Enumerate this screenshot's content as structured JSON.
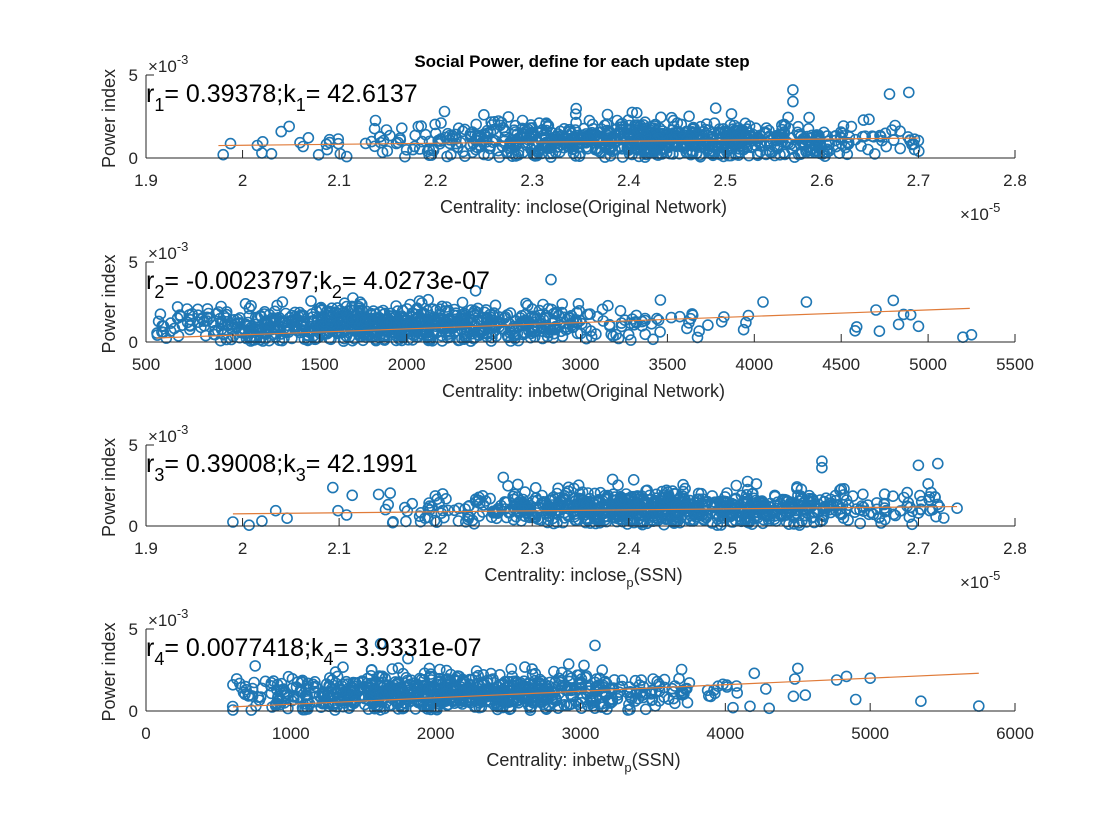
{
  "figure": {
    "title": "Social Power, define for each update step"
  },
  "colors": {
    "marker": "#1f77b4",
    "fit": "#e07b39",
    "axis": "#262626"
  },
  "chart_data": [
    {
      "type": "scatter",
      "xlabel": "Centrality: inclose(Original Network)",
      "xlabel_sub": null,
      "ylabel": "Power index",
      "xlim": [
        1.9,
        2.8
      ],
      "ylim": [
        0,
        5
      ],
      "xticks": [
        "1.9",
        "2",
        "2.1",
        "2.2",
        "2.3",
        "2.4",
        "2.5",
        "2.6",
        "2.7",
        "2.8"
      ],
      "yticks": [
        "0",
        "5"
      ],
      "x_exponent": "-5",
      "y_exponent": "-3",
      "annotation": {
        "r_base": "r",
        "r_sub": "1",
        "r_value": "= 0.39378;",
        "k_base": "k",
        "k_sub": "1",
        "k_value": "= 42.6137"
      },
      "fit": {
        "x": [
          1.975,
          2.7
        ],
        "y": [
          0.75,
          1.2
        ]
      },
      "cloud": {
        "xmin": 1.975,
        "xmax": 2.71,
        "center": 2.42,
        "spread": 0.13,
        "count": 900,
        "ymean": 1.1,
        "ysd": 0.55
      },
      "points": [
        [
          2.67,
          3.85
        ],
        [
          2.69,
          3.95
        ],
        [
          2.57,
          4.1
        ],
        [
          2.49,
          3.0
        ],
        [
          1.98,
          0.2
        ],
        [
          2.02,
          0.3
        ],
        [
          2.25,
          2.6
        ],
        [
          2.7,
          1.05
        ],
        [
          2.03,
          0.25
        ],
        [
          2.09,
          1.1
        ],
        [
          2.57,
          3.4
        ]
      ]
    },
    {
      "type": "scatter",
      "xlabel": "Centrality: inbetw(Original Network)",
      "xlabel_sub": null,
      "ylabel": "Power index",
      "xlim": [
        500,
        5500
      ],
      "ylim": [
        0,
        5
      ],
      "xticks": [
        "500",
        "1000",
        "1500",
        "2000",
        "2500",
        "3000",
        "3500",
        "4000",
        "4500",
        "5000",
        "5500"
      ],
      "yticks": [
        "0",
        "5"
      ],
      "x_exponent": null,
      "y_exponent": "-3",
      "annotation": {
        "r_base": "r",
        "r_sub": "2",
        "r_value": "= -0.0023797;",
        "k_base": "k",
        "k_sub": "2",
        "k_value": "= 4.0273e-07"
      },
      "fit": {
        "x": [
          560,
          5240
        ],
        "y": [
          0.25,
          2.1
        ]
      },
      "cloud": {
        "xmin": 560,
        "xmax": 5260,
        "center": 1900,
        "spread": 700,
        "count": 900,
        "ymean": 1.1,
        "ysd": 0.6
      },
      "points": [
        [
          2830,
          3.9
        ],
        [
          4050,
          2.5
        ],
        [
          4300,
          2.5
        ],
        [
          4800,
          2.6
        ],
        [
          5250,
          0.45
        ],
        [
          5200,
          0.3
        ],
        [
          4700,
          2.0
        ],
        [
          4900,
          1.7
        ],
        [
          4580,
          0.7
        ],
        [
          600,
          0.6
        ]
      ]
    },
    {
      "type": "scatter",
      "xlabel": "Centrality: inclose",
      "xlabel_sub": "p",
      "xlabel_suffix": "(SSN)",
      "ylabel": "Power index",
      "xlim": [
        1.9,
        2.8
      ],
      "ylim": [
        0,
        5
      ],
      "xticks": [
        "1.9",
        "2",
        "2.1",
        "2.2",
        "2.3",
        "2.4",
        "2.5",
        "2.6",
        "2.7",
        "2.8"
      ],
      "yticks": [
        "0",
        "5"
      ],
      "x_exponent": "-5",
      "y_exponent": "-3",
      "annotation": {
        "r_base": "r",
        "r_sub": "3",
        "r_value": "= 0.39008;",
        "k_base": "k",
        "k_sub": "3",
        "k_value": "= 42.1991"
      },
      "fit": {
        "x": [
          1.99,
          2.74
        ],
        "y": [
          0.75,
          1.2
        ]
      },
      "cloud": {
        "xmin": 1.99,
        "xmax": 2.74,
        "center": 2.44,
        "spread": 0.13,
        "count": 900,
        "ymean": 1.1,
        "ysd": 0.55
      },
      "points": [
        [
          2.6,
          4.0
        ],
        [
          2.7,
          3.75
        ],
        [
          2.72,
          3.85
        ],
        [
          2.71,
          2.6
        ],
        [
          2.74,
          1.1
        ],
        [
          1.99,
          0.25
        ],
        [
          2.02,
          0.3
        ],
        [
          2.27,
          3.0
        ],
        [
          2.6,
          3.6
        ]
      ]
    },
    {
      "type": "scatter",
      "xlabel": "Centrality: inbetw",
      "xlabel_sub": "p",
      "xlabel_suffix": "(SSN)",
      "ylabel": "Power index",
      "xlim": [
        0,
        6000
      ],
      "ylim": [
        0,
        5
      ],
      "xticks": [
        "0",
        "1000",
        "2000",
        "3000",
        "4000",
        "5000",
        "6000"
      ],
      "yticks": [
        "0",
        "5"
      ],
      "x_exponent": null,
      "y_exponent": "-3",
      "annotation": {
        "r_base": "r",
        "r_sub": "4",
        "r_value": "= 0.0077418;",
        "k_base": "k",
        "k_sub": "4",
        "k_value": "= 3.9331e-07"
      },
      "fit": {
        "x": [
          600,
          5750
        ],
        "y": [
          0.25,
          2.3
        ]
      },
      "cloud": {
        "xmin": 580,
        "xmax": 5760,
        "center": 2100,
        "spread": 800,
        "count": 900,
        "ymean": 1.1,
        "ysd": 0.6
      },
      "points": [
        [
          1620,
          4.1
        ],
        [
          3100,
          4.0
        ],
        [
          4500,
          2.6
        ],
        [
          5000,
          2.0
        ],
        [
          5350,
          0.6
        ],
        [
          5750,
          0.3
        ],
        [
          4900,
          0.7
        ],
        [
          4200,
          2.3
        ],
        [
          600,
          1.6
        ]
      ]
    }
  ]
}
